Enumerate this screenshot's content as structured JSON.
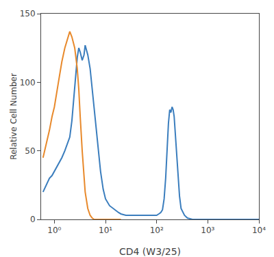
{
  "chart_data": {
    "type": "line",
    "xlabel": "CD4 (W3/25)",
    "ylabel": "Relative Cell Number",
    "log": "x",
    "grid": false,
    "xlim": [
      0.55,
      10000
    ],
    "xticks": [
      {
        "value": 1,
        "label": "10⁰"
      },
      {
        "value": 10,
        "label": "10¹"
      },
      {
        "value": 100,
        "label": "10²"
      },
      {
        "value": 1000,
        "label": "10³"
      },
      {
        "value": 10000,
        "label": "10⁴"
      }
    ],
    "ylim": [
      0,
      150
    ],
    "yticks": [
      0,
      50,
      100,
      150
    ],
    "series": [
      {
        "color": "#3a7dbd",
        "x": [
          0.6,
          0.7,
          0.8,
          0.9,
          1.0,
          1.2,
          1.4,
          1.6,
          1.8,
          2.0,
          2.2,
          2.5,
          2.8,
          3.0,
          3.2,
          3.5,
          3.8,
          4.0,
          4.2,
          4.5,
          5.0,
          5.5,
          6.0,
          7.0,
          8.0,
          9.0,
          10,
          12,
          15,
          18,
          20,
          25,
          30,
          40,
          50,
          60,
          80,
          100,
          110,
          120,
          130,
          140,
          150,
          160,
          170,
          180,
          190,
          200,
          210,
          220,
          230,
          240,
          250,
          260,
          270,
          280,
          300,
          350,
          400,
          500,
          700,
          1000,
          2000,
          5000,
          10000
        ],
        "values": [
          20,
          25,
          30,
          32,
          35,
          40,
          45,
          50,
          55,
          60,
          72,
          95,
          118,
          125,
          122,
          116,
          120,
          127,
          124,
          120,
          110,
          95,
          80,
          55,
          35,
          22,
          15,
          10,
          7,
          5,
          4,
          3,
          3,
          3,
          3,
          3,
          3,
          3,
          4,
          5,
          7,
          15,
          30,
          52,
          70,
          80,
          78,
          82,
          80,
          75,
          65,
          55,
          45,
          35,
          25,
          17,
          8,
          3,
          1,
          0,
          0,
          0,
          0,
          0,
          0
        ]
      },
      {
        "color": "#e8892b",
        "x": [
          0.6,
          0.7,
          0.8,
          0.9,
          1.0,
          1.2,
          1.4,
          1.6,
          1.8,
          2.0,
          2.2,
          2.5,
          2.8,
          3.0,
          3.2,
          3.5,
          4.0,
          4.5,
          5.0,
          5.5,
          6.0,
          7.0,
          8.0,
          10,
          15,
          20
        ],
        "values": [
          45,
          55,
          65,
          75,
          82,
          100,
          115,
          125,
          132,
          137,
          133,
          125,
          110,
          95,
          75,
          50,
          20,
          8,
          3,
          1,
          0,
          0,
          0,
          0,
          0,
          0
        ]
      }
    ]
  }
}
